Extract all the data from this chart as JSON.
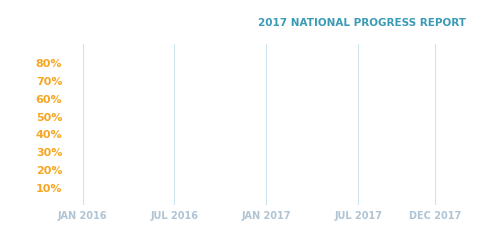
{
  "title": "2017 NATIONAL PROGRESS REPORT",
  "title_color": "#3a9bb5",
  "title_fontsize": 7.5,
  "background_color": "#ffffff",
  "ytick_labels": [
    "10%",
    "20%",
    "30%",
    "40%",
    "50%",
    "60%",
    "70%",
    "80%"
  ],
  "ytick_values": [
    10,
    20,
    30,
    40,
    50,
    60,
    70,
    80
  ],
  "ytick_color": "#f5a623",
  "ytick_fontsize": 8,
  "xtick_labels": [
    "JAN 2016",
    "JUL 2016",
    "JAN 2017",
    "JUL 2017",
    "DEC 2017"
  ],
  "xtick_values": [
    0,
    6,
    12,
    18,
    23
  ],
  "xtick_color": "#b0c4d4",
  "xtick_fontsize": 7,
  "ylim": [
    0,
    90
  ],
  "xlim": [
    -1,
    25
  ],
  "grid_color": "#d0e4ef",
  "grid_linewidth": 0.8,
  "spine_color": "#e8f0f5"
}
